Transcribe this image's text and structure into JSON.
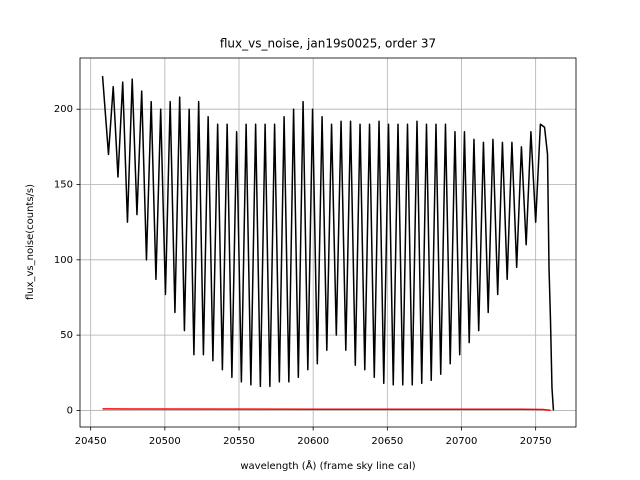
{
  "chart_data": {
    "type": "line",
    "title": "flux_vs_noise, jan19s0025, order 37",
    "x_label": "wavelength (Å) (frame sky line cal)",
    "y_label": "flux_vs_noise(counts/s)",
    "xlim": [
      20442.8,
      20777.2
    ],
    "ylim": [
      -11,
      234
    ],
    "xticks": [
      20450,
      20500,
      20550,
      20600,
      20650,
      20700,
      20750
    ],
    "yticks": [
      0,
      50,
      100,
      150,
      200
    ],
    "grid": true,
    "series": [
      {
        "color": "#000000",
        "x": [
          20458,
          20462,
          20465.2,
          20468.4,
          20471.6,
          20474.8,
          20478,
          20481.2,
          20484.4,
          20487.6,
          20490.8,
          20494,
          20497.2,
          20500.4,
          20503.6,
          20506.8,
          20510,
          20513.2,
          20516.4,
          20519.6,
          20522.8,
          20526,
          20529.2,
          20532.4,
          20535.6,
          20538.8,
          20542,
          20545.2,
          20548.4,
          20551.6,
          20554.8,
          20558,
          20561.2,
          20564.4,
          20567.6,
          20570.8,
          20574,
          20577.2,
          20580.4,
          20583.6,
          20586.8,
          20590,
          20593.2,
          20596.4,
          20599.6,
          20602.8,
          20606,
          20609.2,
          20612.4,
          20615.6,
          20618.8,
          20622,
          20625.2,
          20628.4,
          20631.6,
          20634.8,
          20638,
          20641.2,
          20644.4,
          20647.6,
          20650.8,
          20654,
          20657.2,
          20660.4,
          20663.6,
          20666.8,
          20670,
          20673.2,
          20676.4,
          20679.6,
          20682.8,
          20686,
          20689.2,
          20692.4,
          20695.6,
          20698.8,
          20702,
          20705.2,
          20708.4,
          20711.6,
          20714.8,
          20718,
          20721.2,
          20724.4,
          20727.6,
          20730.8,
          20734,
          20737.2,
          20740.4,
          20743.6,
          20746.8,
          20750,
          20753.2,
          20756,
          20758,
          20759,
          20760,
          20761,
          20762
        ],
        "values": [
          222,
          170,
          215,
          155,
          218,
          125,
          220,
          130,
          212,
          100,
          205,
          87,
          200,
          77,
          205,
          65,
          208,
          53,
          200,
          37,
          205,
          37,
          195,
          33,
          190,
          27,
          190,
          22,
          185,
          19,
          190,
          17,
          190,
          16,
          190,
          16,
          190,
          19,
          195,
          19,
          200,
          22,
          205,
          27,
          200,
          31,
          195,
          40,
          190,
          50,
          192,
          40,
          192,
          30,
          190,
          27,
          190,
          22,
          192,
          18,
          190,
          17,
          190,
          17,
          190,
          17,
          192,
          18,
          190,
          20,
          190,
          24,
          190,
          31,
          185,
          37,
          185,
          45,
          180,
          53,
          178,
          65,
          180,
          77,
          178,
          87,
          178,
          95,
          175,
          110,
          185,
          125,
          190,
          188,
          170,
          95,
          60,
          15,
          0
        ]
      },
      {
        "color": "#ff0000",
        "x": [
          20458,
          20600,
          20740,
          20755,
          20760
        ],
        "values": [
          1,
          0.8,
          0.8,
          0.6,
          0
        ]
      }
    ]
  }
}
